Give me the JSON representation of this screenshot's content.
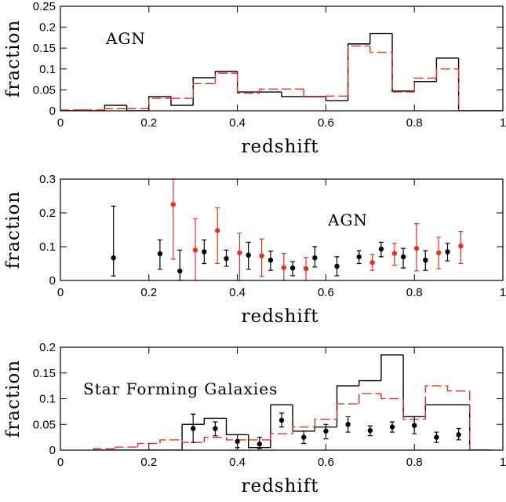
{
  "chart_data": [
    {
      "type": "histogram",
      "annotation": "AGN",
      "xlabel": "redshift",
      "ylabel": "fraction",
      "bins": [
        0,
        0.05,
        0.1,
        0.15,
        0.2,
        0.25,
        0.3,
        0.35,
        0.4,
        0.45,
        0.5,
        0.55,
        0.6,
        0.65,
        0.7,
        0.75,
        0.8,
        0.85,
        0.9,
        0.95,
        1
      ],
      "series": [
        {
          "color": "#000000",
          "dashed": false,
          "values": [
            0,
            0,
            0.013,
            0,
            0.034,
            0.013,
            0.079,
            0.094,
            0.045,
            0.045,
            0.034,
            0.034,
            0.024,
            0.16,
            0.185,
            0.047,
            0.07,
            0.126,
            0,
            0
          ]
        },
        {
          "color": "#e8301e",
          "dashed": true,
          "values": [
            0.002,
            0.002,
            0.005,
            0.005,
            0.03,
            0.03,
            0.065,
            0.09,
            0.042,
            0.052,
            0.052,
            0.033,
            0.035,
            0.155,
            0.14,
            0.045,
            0.078,
            0.1,
            0,
            0
          ]
        }
      ],
      "xlim": [
        0,
        1
      ],
      "xticks": [
        0,
        0.2,
        0.4,
        0.6,
        0.8,
        1
      ],
      "ylim": [
        0,
        0.25
      ],
      "yticks": [
        0,
        0.05,
        0.1,
        0.15,
        0.2,
        0.25
      ]
    },
    {
      "type": "scatter",
      "annotation": "AGN",
      "xlabel": "redshift",
      "ylabel": "fraction",
      "series": [
        {
          "color": "#000000",
          "x": [
            0.12,
            0.225,
            0.27,
            0.325,
            0.375,
            0.425,
            0.475,
            0.525,
            0.575,
            0.625,
            0.675,
            0.725,
            0.775,
            0.825,
            0.875
          ],
          "values": [
            0.067,
            0.079,
            0.028,
            0.085,
            0.065,
            0.075,
            0.06,
            0.037,
            0.067,
            0.042,
            0.07,
            0.093,
            0.07,
            0.06,
            0.085
          ],
          "lower": [
            0.013,
            0.033,
            0,
            0.05,
            0.042,
            0.033,
            0.03,
            0.014,
            0.04,
            0.014,
            0.05,
            0.07,
            0.037,
            0.03,
            0.058
          ],
          "upper": [
            0.22,
            0.12,
            0.09,
            0.12,
            0.09,
            0.113,
            0.087,
            0.056,
            0.1,
            0.07,
            0.088,
            0.113,
            0.095,
            0.088,
            0.11
          ]
        },
        {
          "color": "#e8301e",
          "x": [
            0.255,
            0.305,
            0.355,
            0.405,
            0.455,
            0.505,
            0.555,
            0.705,
            0.755,
            0.805,
            0.855,
            0.905
          ],
          "values": [
            0.225,
            0.09,
            0.148,
            0.082,
            0.073,
            0.038,
            0.035,
            0.053,
            0.08,
            0.095,
            0.082,
            0.102
          ],
          "lower": [
            0.063,
            0,
            0.05,
            0,
            0.012,
            0,
            0,
            0.03,
            0.045,
            0.028,
            0.035,
            0.05
          ],
          "upper": [
            0.3,
            0.183,
            0.215,
            0.14,
            0.123,
            0.08,
            0.068,
            0.077,
            0.11,
            0.168,
            0.128,
            0.145
          ]
        }
      ],
      "xlim": [
        0,
        1
      ],
      "xticks": [
        0,
        0.2,
        0.4,
        0.6,
        0.8,
        1
      ],
      "ylim": [
        0,
        0.3
      ],
      "yticks": [
        0,
        0.1,
        0.2,
        0.3
      ]
    },
    {
      "type": "histogram",
      "annotation": "Star Forming Galaxies",
      "xlabel": "redshift",
      "ylabel": "fraction",
      "bins": [
        0.075,
        0.125,
        0.175,
        0.225,
        0.275,
        0.325,
        0.375,
        0.425,
        0.475,
        0.525,
        0.575,
        0.625,
        0.675,
        0.725,
        0.775,
        0.825,
        0.875,
        0.925,
        0.975
      ],
      "series": [
        {
          "color": "#000000",
          "dashed": false,
          "values": [
            0,
            0,
            0,
            0,
            0.05,
            0.062,
            0.03,
            0.005,
            0.088,
            0.037,
            0.045,
            0.125,
            0.135,
            0.185,
            0.065,
            0.088,
            0.088,
            0
          ]
        },
        {
          "color": "#e8301e",
          "dashed": true,
          "values": [
            0.003,
            0.006,
            0.013,
            0.02,
            0.015,
            0.025,
            0.02,
            0.02,
            0.032,
            0.045,
            0.06,
            0.09,
            0.11,
            0.1,
            0.06,
            0.125,
            0.115,
            0
          ]
        }
      ],
      "points": {
        "color": "#000000",
        "x": [
          0.3,
          0.35,
          0.4,
          0.45,
          0.5,
          0.55,
          0.6,
          0.65,
          0.7,
          0.75,
          0.8,
          0.85,
          0.9
        ],
        "values": [
          0.042,
          0.042,
          0.017,
          0.012,
          0.058,
          0.025,
          0.037,
          0.05,
          0.038,
          0.045,
          0.048,
          0.025,
          0.03
        ],
        "lower": [
          0.015,
          0.028,
          0.005,
          0.003,
          0.045,
          0.013,
          0.022,
          0.035,
          0.028,
          0.035,
          0.032,
          0.015,
          0.02
        ],
        "upper": [
          0.07,
          0.055,
          0.03,
          0.025,
          0.072,
          0.037,
          0.05,
          0.065,
          0.047,
          0.055,
          0.065,
          0.035,
          0.042
        ]
      },
      "xlim": [
        0,
        1
      ],
      "xticks": [
        0,
        0.2,
        0.4,
        0.6,
        0.8,
        1
      ],
      "ylim": [
        0,
        0.2
      ],
      "yticks": [
        0,
        0.05,
        0.1,
        0.15,
        0.2
      ]
    }
  ]
}
